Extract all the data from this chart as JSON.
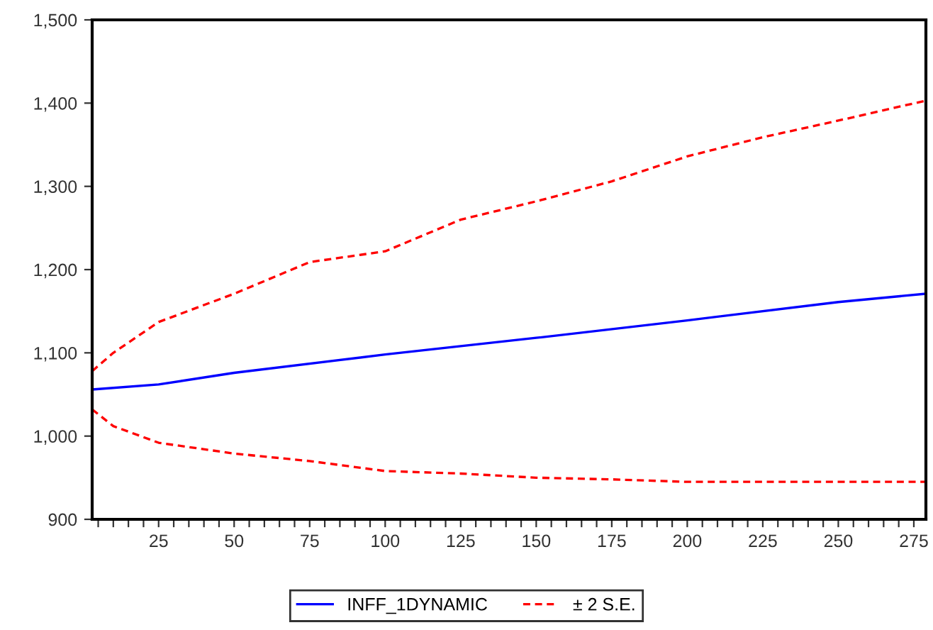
{
  "chart_data": {
    "type": "line",
    "x": [
      3,
      10,
      25,
      50,
      75,
      100,
      125,
      150,
      175,
      200,
      225,
      250,
      279
    ],
    "series": [
      {
        "name": "INFF_1DYNAMIC",
        "color": "#0000ff",
        "line_style": "solid",
        "x": [
          3,
          25,
          50,
          100,
          150,
          200,
          250,
          279
        ],
        "values": [
          1056,
          1062,
          1076,
          1098,
          1118,
          1139,
          1161,
          1171
        ]
      },
      {
        "name": "± 2 S.E.",
        "color": "#ff0000",
        "line_style": "dashed",
        "values": [
          1078,
          1100,
          1137,
          1171,
          1209,
          1222,
          1260,
          1282,
          1306,
          1336,
          1359,
          1379,
          1403
        ]
      },
      {
        "color": "#ff0000",
        "line_style": "dashed",
        "values": [
          1032,
          1012,
          992,
          979,
          970,
          958,
          955,
          950,
          948,
          945,
          945,
          945,
          945
        ]
      }
    ],
    "xlim": [
      3,
      279
    ],
    "ylim": [
      900,
      1500
    ],
    "xticks": [
      {
        "value": 5,
        "label": null
      },
      {
        "value": 10,
        "label": null
      },
      {
        "value": 15,
        "label": null
      },
      {
        "value": 20,
        "label": null
      },
      25,
      {
        "value": 30,
        "label": null
      },
      {
        "value": 35,
        "label": null
      },
      {
        "value": 40,
        "label": null
      },
      {
        "value": 45,
        "label": null
      },
      50,
      {
        "value": 55,
        "label": null
      },
      {
        "value": 60,
        "label": null
      },
      {
        "value": 65,
        "label": null
      },
      {
        "value": 70,
        "label": null
      },
      75,
      {
        "value": 80,
        "label": null
      },
      {
        "value": 85,
        "label": null
      },
      {
        "value": 90,
        "label": null
      },
      {
        "value": 95,
        "label": null
      },
      100,
      {
        "value": 105,
        "label": null
      },
      {
        "value": 110,
        "label": null
      },
      {
        "value": 115,
        "label": null
      },
      {
        "value": 120,
        "label": null
      },
      125,
      {
        "value": 130,
        "label": null
      },
      {
        "value": 135,
        "label": null
      },
      {
        "value": 140,
        "label": null
      },
      {
        "value": 145,
        "label": null
      },
      150,
      {
        "value": 155,
        "label": null
      },
      {
        "value": 160,
        "label": null
      },
      {
        "value": 165,
        "label": null
      },
      {
        "value": 170,
        "label": null
      },
      175,
      {
        "value": 180,
        "label": null
      },
      {
        "value": 185,
        "label": null
      },
      {
        "value": 190,
        "label": null
      },
      {
        "value": 195,
        "label": null
      },
      200,
      {
        "value": 205,
        "label": null
      },
      {
        "value": 210,
        "label": null
      },
      {
        "value": 215,
        "label": null
      },
      {
        "value": 220,
        "label": null
      },
      225,
      {
        "value": 230,
        "label": null
      },
      {
        "value": 235,
        "label": null
      },
      {
        "value": 240,
        "label": null
      },
      {
        "value": 245,
        "label": null
      },
      250,
      {
        "value": 255,
        "label": null
      },
      {
        "value": 260,
        "label": null
      },
      {
        "value": 265,
        "label": null
      },
      {
        "value": 270,
        "label": null
      },
      275
    ],
    "yticks": [
      {
        "value": 900,
        "label": "900"
      },
      {
        "value": 1000,
        "label": "1,000"
      },
      {
        "value": 1100,
        "label": "1,100"
      },
      {
        "value": 1200,
        "label": "1,200"
      },
      {
        "value": 1300,
        "label": "1,300"
      },
      {
        "value": 1400,
        "label": "1,400"
      },
      {
        "value": 1500,
        "label": "1,500"
      }
    ],
    "grid": false,
    "legend": "bottom",
    "marker": "none"
  }
}
